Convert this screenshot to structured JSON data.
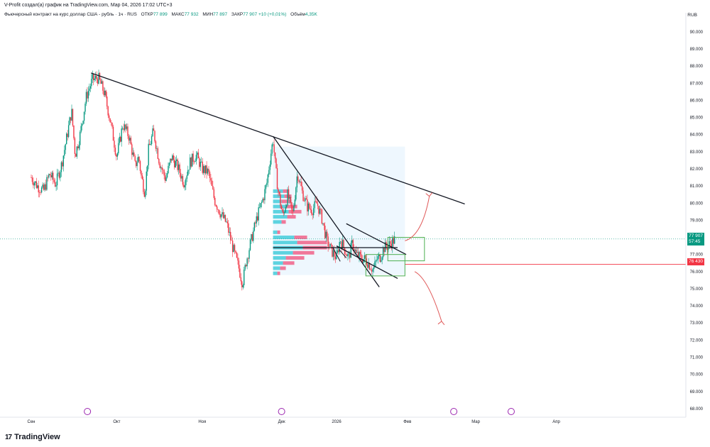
{
  "header": {
    "attribution": "V-Profit создал(а) график на TradingView.com, Мар 04, 2026 17:02 UTC+3"
  },
  "legend": {
    "instrument": "Фьючерсный контракт на курс доллар США - рубль · 1ч · RUS",
    "open_label": "ОТКР",
    "open": "77 899",
    "high_label": "МАКС",
    "high": "77 932",
    "low_label": "МИН",
    "low": "77 897",
    "close_label": "ЗАКР",
    "close": "77 907",
    "change": "+10 (+0,01%)",
    "volume_label": "Объём",
    "volume": "4,35K"
  },
  "currency": "RUB",
  "price_tags": {
    "last_price": "77 907",
    "countdown": "57:45",
    "level": "76 430",
    "last_color": "#089981",
    "level_color": "#f23645"
  },
  "footer": {
    "brand": "TradingView",
    "icon": "tradingview-logo-icon"
  },
  "colors": {
    "up": "#089981",
    "down": "#f23645",
    "volume_buy": "#5dd3e0",
    "volume_sell": "#f0789a",
    "trendline": "#131722",
    "box_green": "#4caf50",
    "zone": "#e3f2fd",
    "arrow": "#e05a5a"
  },
  "chart_data": {
    "type": "candlestick",
    "y_axis": {
      "min": 67500,
      "max": 90700,
      "ticks": [
        90000,
        89000,
        88000,
        87000,
        86000,
        85000,
        84000,
        83000,
        82000,
        81000,
        80000,
        79000,
        78000,
        77000,
        76000,
        75000,
        74000,
        73000,
        72000,
        71000,
        70000,
        69000,
        68000
      ]
    },
    "x_axis": {
      "labels": [
        "Сен",
        "Окт",
        "Ноя",
        "Дек",
        "2026",
        "Фев",
        "Мар",
        "Апр"
      ]
    },
    "series": [
      {
        "values": [
          [
            0,
            81500
          ],
          [
            0.05,
            81000
          ],
          [
            0.1,
            80700
          ],
          [
            0.15,
            81700
          ],
          [
            0.2,
            81100
          ],
          [
            0.25,
            82300
          ],
          [
            0.3,
            84200
          ],
          [
            0.33,
            85400
          ],
          [
            0.36,
            82800
          ],
          [
            0.4,
            84000
          ],
          [
            0.45,
            86200
          ],
          [
            0.5,
            87200
          ],
          [
            0.55,
            87300
          ],
          [
            0.6,
            86400
          ],
          [
            0.65,
            84700
          ],
          [
            0.7,
            82700
          ],
          [
            0.75,
            84600
          ],
          [
            0.8,
            83900
          ],
          [
            0.85,
            82200
          ],
          [
            0.88,
            82700
          ],
          [
            0.9,
            81600
          ],
          [
            0.93,
            80600
          ],
          [
            0.96,
            83100
          ],
          [
            1.0,
            84200
          ],
          [
            1.05,
            82400
          ],
          [
            1.1,
            81400
          ],
          [
            1.15,
            82700
          ],
          [
            1.2,
            82100
          ],
          [
            1.25,
            81200
          ],
          [
            1.3,
            82400
          ],
          [
            1.35,
            82800
          ],
          [
            1.4,
            82000
          ],
          [
            1.45,
            81800
          ],
          [
            1.5,
            80200
          ],
          [
            1.55,
            79400
          ],
          [
            1.6,
            78800
          ],
          [
            1.65,
            77400
          ],
          [
            1.7,
            76200
          ],
          [
            1.73,
            75300
          ],
          [
            1.76,
            76600
          ],
          [
            1.8,
            77800
          ],
          [
            1.85,
            79200
          ],
          [
            1.9,
            80300
          ],
          [
            1.93,
            81200
          ],
          [
            1.96,
            82800
          ],
          [
            1.98,
            83700
          ],
          [
            2.0,
            82100
          ],
          [
            2.02,
            80800
          ],
          [
            2.06,
            79200
          ],
          [
            2.1,
            80500
          ],
          [
            2.14,
            79300
          ],
          [
            2.18,
            81800
          ],
          [
            2.22,
            80600
          ],
          [
            2.26,
            79800
          ],
          [
            2.3,
            79600
          ],
          [
            2.34,
            80000
          ],
          [
            2.38,
            79100
          ],
          [
            2.42,
            77800
          ],
          [
            2.46,
            77200
          ],
          [
            2.5,
            76800
          ],
          [
            2.53,
            77900
          ],
          [
            2.56,
            77400
          ],
          [
            2.6,
            76800
          ],
          [
            2.63,
            77700
          ],
          [
            2.66,
            77000
          ],
          [
            2.7,
            76800
          ],
          [
            2.74,
            76700
          ],
          [
            2.77,
            76400
          ],
          [
            2.8,
            76100
          ],
          [
            2.83,
            76700
          ],
          [
            2.86,
            76900
          ],
          [
            2.89,
            77400
          ],
          [
            2.92,
            77500
          ],
          [
            2.95,
            77700
          ],
          [
            2.98,
            77900
          ]
        ]
      }
    ],
    "annotations": {
      "long_downtrend": [
        [
          0.49,
          87600
        ],
        [
          3.55,
          79950
        ]
      ],
      "steep_downtrend": [
        [
          1.98,
          83900
        ],
        [
          2.85,
          75100
        ]
      ],
      "channel_upper": [
        [
          2.58,
          78800
        ],
        [
          3.07,
          77000
        ]
      ],
      "channel_lower": [
        [
          2.5,
          77500
        ],
        [
          3.0,
          75600
        ]
      ],
      "horizontal_level": [
        [
          1.98,
          77400
        ],
        [
          3.0,
          77400
        ]
      ],
      "boxes": [
        {
          "from": [
            2.92,
            78000
          ],
          "to": [
            3.22,
            76630
          ]
        },
        {
          "from": [
            2.74,
            77000
          ],
          "to": [
            3.06,
            75750
          ]
        }
      ],
      "arrow_up": [
        [
          3.06,
          77800
        ],
        [
          3.2,
          78100
        ],
        [
          3.26,
          80400
        ]
      ],
      "arrow_down": [
        [
          3.14,
          76000
        ],
        [
          3.25,
          75600
        ],
        [
          3.36,
          73100
        ]
      ],
      "volume_profile_zone": [
        [
          1.98,
          83300
        ],
        [
          3.06,
          75800
        ]
      ]
    },
    "legend": "top-left",
    "grid": false
  }
}
